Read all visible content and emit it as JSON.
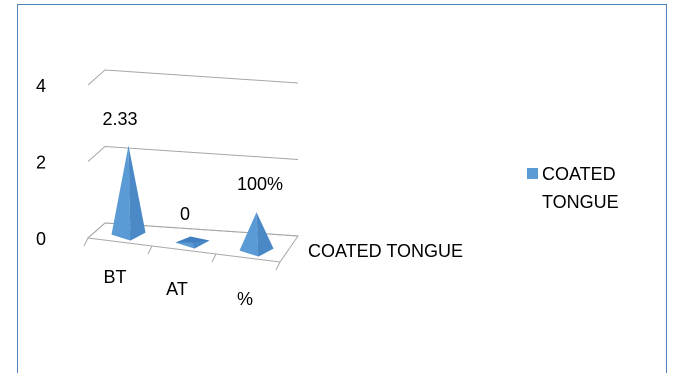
{
  "chart_data": {
    "type": "pyramid3d",
    "categories": [
      "BT",
      "AT",
      "%"
    ],
    "series": [
      {
        "name": "COATED TONGUE",
        "color": "#5b9bd5",
        "values": [
          2.33,
          0,
          1
        ],
        "value_labels": [
          "2.33",
          "0",
          "100%"
        ]
      }
    ],
    "depth_label": "COATED TONGUE",
    "ylim": [
      0,
      4
    ],
    "yticks": [
      0,
      2,
      4
    ],
    "grid": true,
    "legend": "right"
  }
}
